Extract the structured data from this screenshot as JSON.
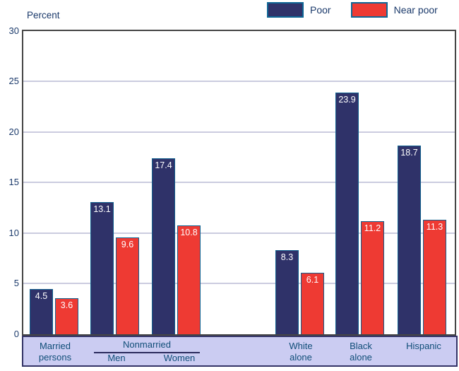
{
  "axis_title": "Percent",
  "legend": {
    "items": [
      {
        "label": "Poor",
        "color": "#2f3269"
      },
      {
        "label": "Near poor",
        "color": "#ee3a33"
      }
    ]
  },
  "y_axis": {
    "ticks": [
      "30",
      "25",
      "20",
      "15",
      "10",
      "5",
      "0"
    ]
  },
  "x_band": {
    "married": "Married\npersons",
    "nonmarried": "Nonmarried",
    "men": "Men",
    "women": "Women",
    "white": "White\nalone",
    "black": "Black\nalone",
    "hispanic": "Hispanic"
  },
  "chart_data": {
    "type": "bar",
    "title": "",
    "xlabel": "",
    "ylabel": "Percent",
    "ylim": [
      0,
      30
    ],
    "yticks": [
      0,
      5,
      10,
      15,
      20,
      25,
      30
    ],
    "grid": true,
    "legend_position": "top-right",
    "categories": [
      "Married persons",
      "Nonmarried Men",
      "Nonmarried Women",
      "White alone",
      "Black alone",
      "Hispanic"
    ],
    "category_group_header": "Nonmarried",
    "series": [
      {
        "name": "Poor",
        "color": "#2f3269",
        "values": [
          4.5,
          13.1,
          17.4,
          8.3,
          23.9,
          18.7
        ]
      },
      {
        "name": "Near poor",
        "color": "#ee3a33",
        "values": [
          3.6,
          9.6,
          10.8,
          6.1,
          11.2,
          11.3
        ]
      }
    ]
  }
}
